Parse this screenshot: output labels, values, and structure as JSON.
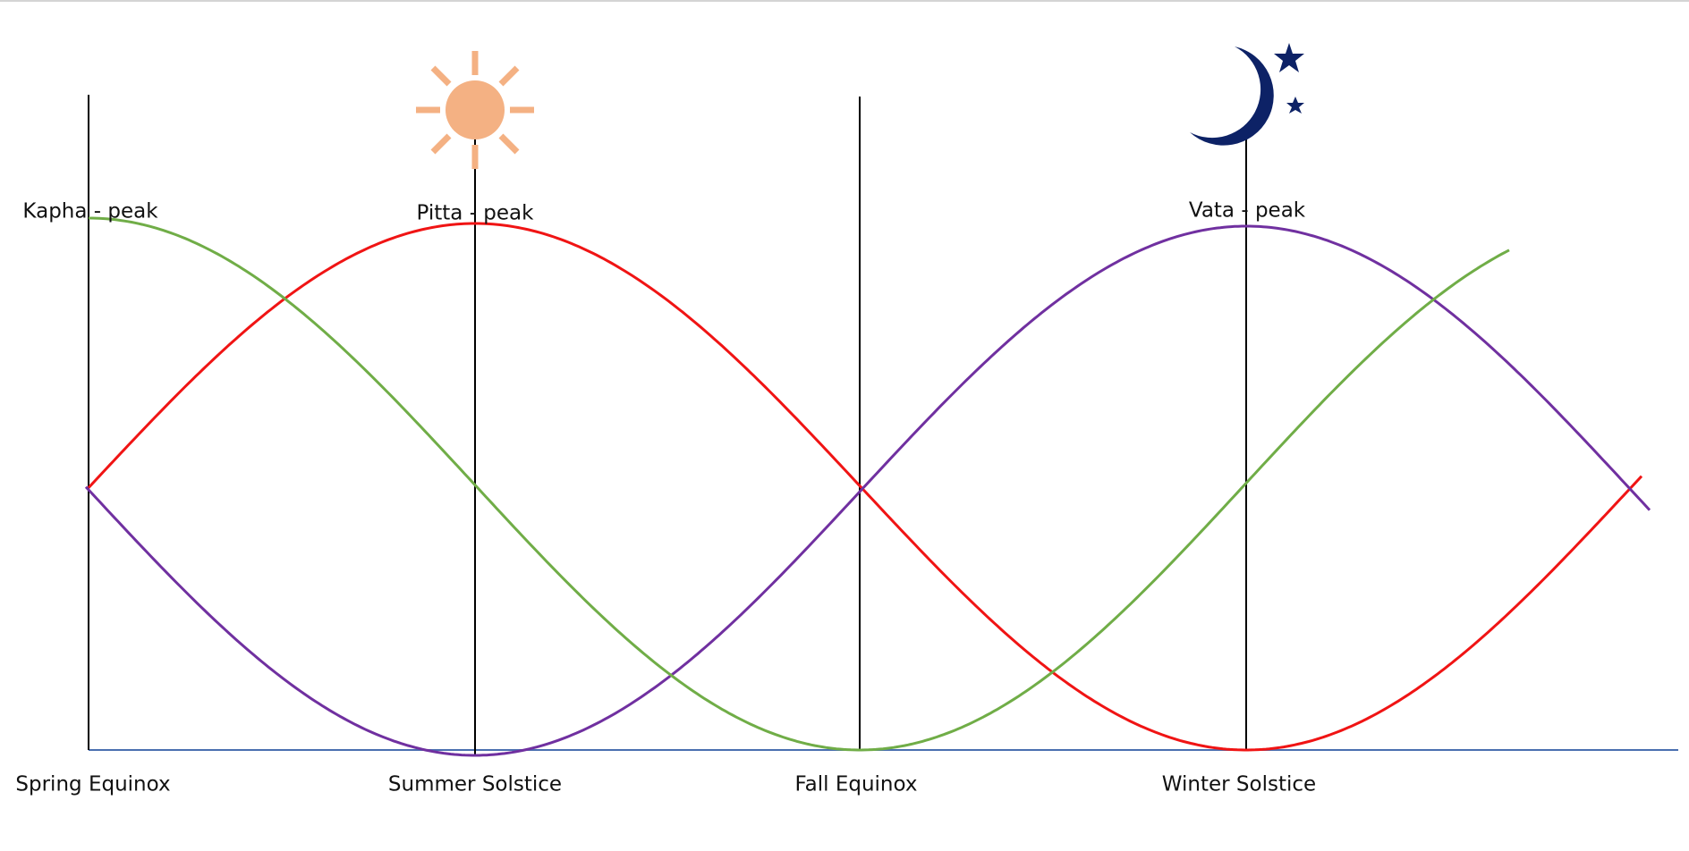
{
  "peak_labels": [
    "Kapha - peak",
    "Pitta - peak",
    "Vata - peak"
  ],
  "season_labels": [
    "Spring Equinox",
    "Summer Solstice",
    "Fall Equinox",
    "Winter Solstice"
  ]
}
